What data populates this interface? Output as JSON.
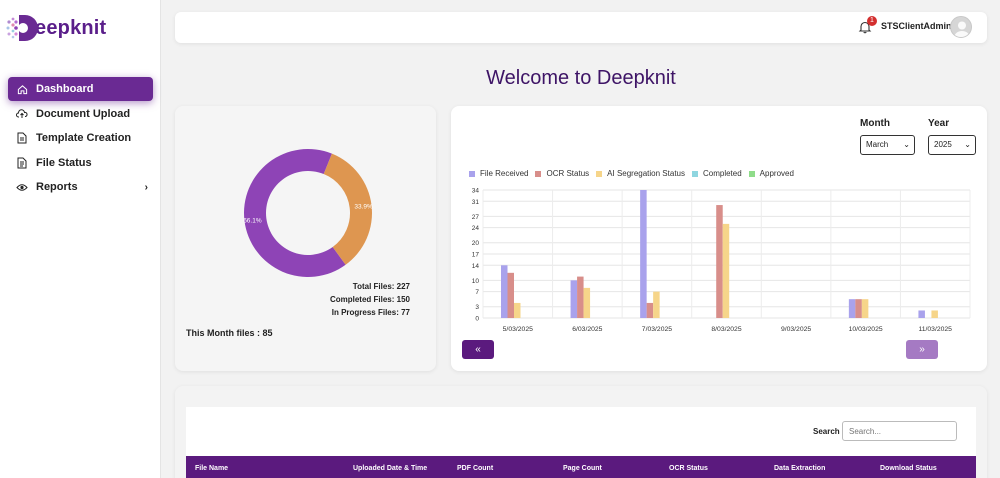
{
  "app": {
    "brand": "eepknit"
  },
  "sidebar": {
    "items": [
      {
        "label": "Dashboard",
        "icon": "home-icon",
        "active": true
      },
      {
        "label": "Document Upload",
        "icon": "cloud-upload-icon"
      },
      {
        "label": "Template Creation",
        "icon": "document-icon"
      },
      {
        "label": "File Status",
        "icon": "file-icon"
      },
      {
        "label": "Reports",
        "icon": "eye-icon",
        "has_children": true
      }
    ]
  },
  "topbar": {
    "notification_count": "1",
    "username": "STSClientAdmin"
  },
  "page": {
    "title": "Welcome to Deepknit"
  },
  "donut": {
    "segments": [
      {
        "label": "66.1%",
        "value": 66.1,
        "color": "#8e44b6"
      },
      {
        "label": "33.9%",
        "value": 33.9,
        "color": "#de9650"
      }
    ],
    "total_files": "Total Files: 227",
    "completed_files": "Completed Files: 150",
    "in_progress_files": "In Progress Files: 77",
    "month_files": "This Month files : 85"
  },
  "filters": {
    "month_label": "Month",
    "month_value": "March",
    "year_label": "Year",
    "year_value": "2025"
  },
  "chart_data": {
    "type": "bar",
    "categories": [
      "5/03/2025",
      "6/03/2025",
      "7/03/2025",
      "8/03/2025",
      "9/03/2025",
      "10/03/2025",
      "11/03/2025"
    ],
    "series": [
      {
        "name": "File Received",
        "color": "#a9a2ec",
        "values": [
          14,
          10,
          34,
          0,
          0,
          5,
          2
        ]
      },
      {
        "name": "OCR Status",
        "color": "#d88e8a",
        "values": [
          12,
          11,
          4,
          30,
          0,
          5,
          0
        ]
      },
      {
        "name": "AI Segregation Status",
        "color": "#f6d58a",
        "values": [
          4,
          8,
          7,
          25,
          0,
          5,
          2
        ]
      },
      {
        "name": "Completed",
        "color": "#8fd6e0",
        "values": [
          0,
          0,
          0,
          0,
          0,
          0,
          0
        ]
      },
      {
        "name": "Approved",
        "color": "#8fdc8a",
        "values": [
          0,
          0,
          0,
          0,
          0,
          0,
          0
        ]
      }
    ],
    "y_ticks": [
      "0",
      "3",
      "7",
      "10",
      "14",
      "17",
      "20",
      "24",
      "27",
      "31",
      "34"
    ],
    "ylim": [
      0,
      34
    ],
    "grid": true,
    "legend_position": "top-left"
  },
  "pager": {
    "prev": "«",
    "next": "»"
  },
  "table": {
    "search_label": "Search",
    "search_placeholder": "Search...",
    "columns": [
      "File Name",
      "Uploaded Date & Time",
      "PDF Count",
      "Page Count",
      "OCR Status",
      "Data Extraction",
      "Download Status"
    ]
  },
  "colors": {
    "primary": "#5b1a7e",
    "accent": "#6a2a93",
    "title": "#3e1466"
  }
}
